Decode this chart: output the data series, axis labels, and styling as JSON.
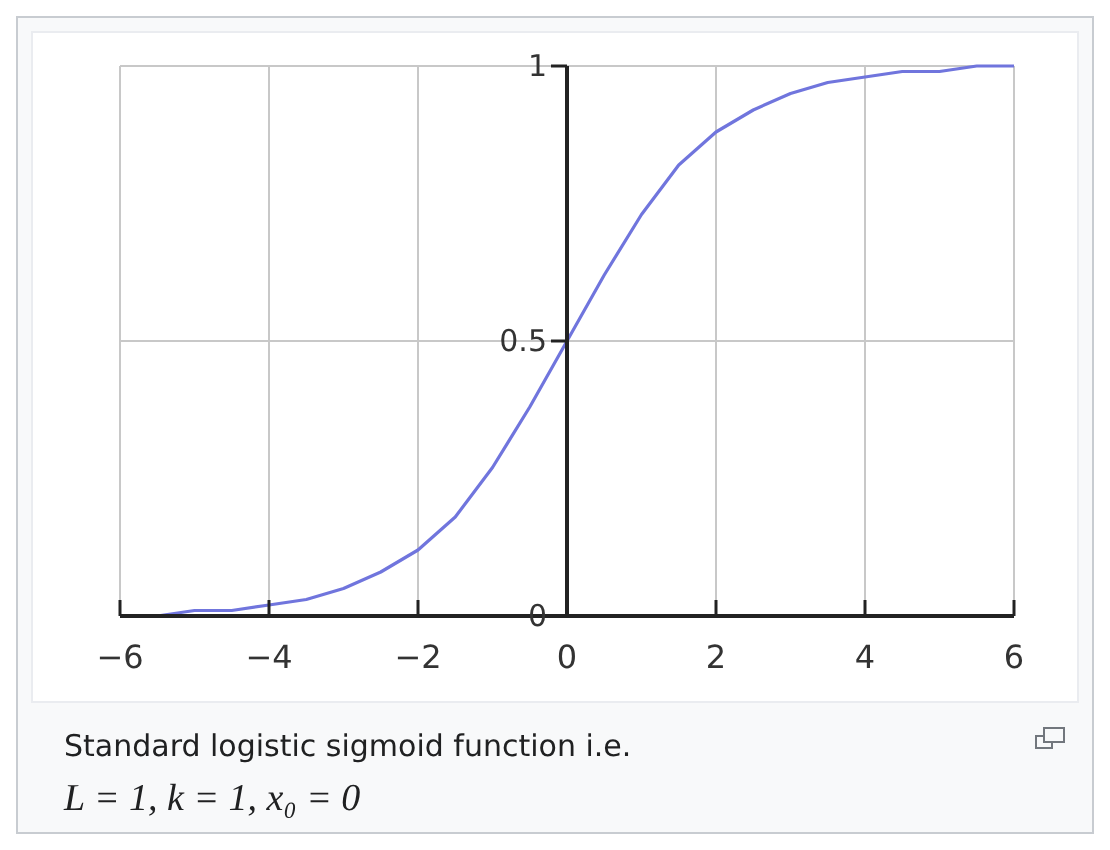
{
  "chart_data": {
    "type": "line",
    "x": [
      -6,
      -5.5,
      -5,
      -4.5,
      -4,
      -3.5,
      -3,
      -2.5,
      -2,
      -1.5,
      -1,
      -0.5,
      0,
      0.5,
      1,
      1.5,
      2,
      2.5,
      3,
      3.5,
      4,
      4.5,
      5,
      5.5,
      6
    ],
    "series": [
      {
        "color": "#7075dd",
        "values": [
          0,
          0,
          0.01,
          0.01,
          0.02,
          0.03,
          0.05,
          0.08,
          0.12,
          0.18,
          0.27,
          0.38,
          0.5,
          0.62,
          0.73,
          0.82,
          0.88,
          0.92,
          0.95,
          0.97,
          0.98,
          0.99,
          0.99,
          1,
          1
        ]
      }
    ],
    "xlim": [
      -6,
      6
    ],
    "ylim": [
      0,
      1
    ],
    "xticks": [
      {
        "value": -6,
        "label": "−6"
      },
      {
        "value": -4,
        "label": "−4"
      },
      {
        "value": -2,
        "label": "−2"
      },
      0,
      2,
      4,
      6
    ],
    "yticks": [
      0,
      0.5,
      1
    ],
    "grid": true,
    "marker": "none",
    "line_style": "solid",
    "annotations": [
      "Standard logistic sigmoid function i.e.",
      "L = 1, k = 1, x₀ = 0"
    ]
  }
}
